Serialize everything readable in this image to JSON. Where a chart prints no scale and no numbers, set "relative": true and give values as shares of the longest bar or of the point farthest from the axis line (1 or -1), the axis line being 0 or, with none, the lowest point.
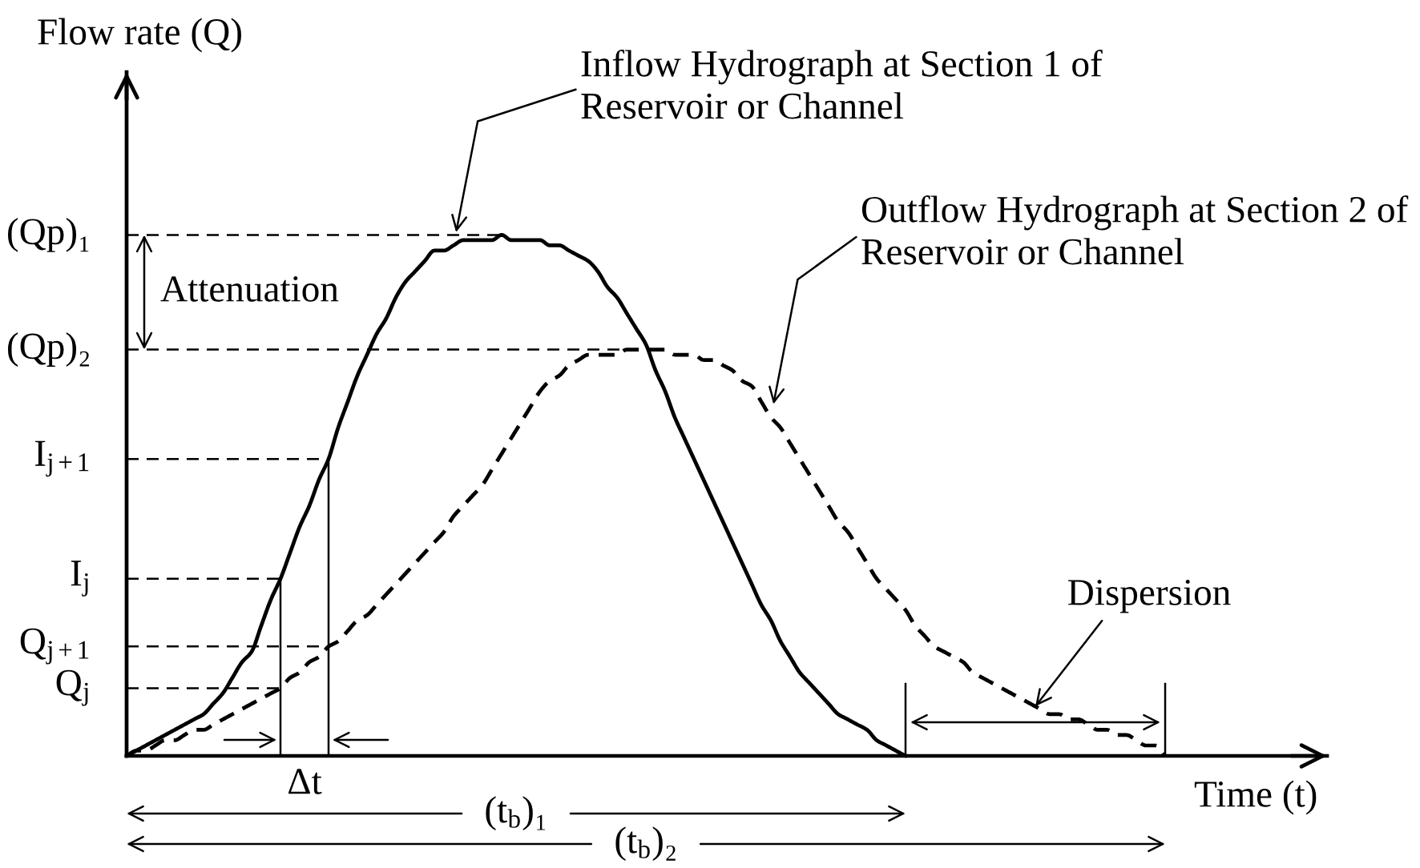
{
  "chart_data": {
    "type": "line",
    "relative": true,
    "xlabel": "Time (t)",
    "ylabel": "Flow rate (Q)",
    "categories": [
      null,
      null,
      null,
      null,
      null,
      null,
      null,
      null,
      null,
      null,
      null,
      null,
      null,
      null,
      null,
      null,
      null,
      null,
      null,
      null,
      null,
      null,
      null,
      null,
      null,
      null,
      null,
      null,
      null,
      null,
      null,
      null,
      null,
      null,
      null,
      null,
      null,
      null,
      null,
      null,
      null,
      null,
      null,
      null,
      null,
      null,
      null,
      null,
      null,
      null,
      null,
      null,
      null,
      null,
      null,
      null,
      null,
      null,
      null,
      null,
      null,
      null,
      null,
      null,
      null,
      null,
      null,
      null,
      null,
      null,
      null,
      null,
      null,
      null,
      null,
      null,
      null,
      null,
      null,
      null,
      null,
      null,
      null,
      null,
      null,
      null,
      null,
      null,
      null,
      null,
      null,
      null,
      null,
      null,
      null,
      null,
      null,
      null,
      null,
      null,
      null,
      null,
      null,
      null,
      null,
      null,
      null,
      null,
      null
    ],
    "series": [
      {
        "name": "Inflow Hydrograph at Section 1 of\nReservoir or Channel",
        "color": "#000000",
        "line_style": "solid",
        "values": [
          0,
          0.01,
          0.02,
          0.03,
          0.04,
          0.05,
          0.06,
          0.07,
          0.08,
          0.1,
          0.12,
          0.15,
          0.18,
          0.2,
          0.25,
          0.3,
          0.34,
          0.39,
          0.44,
          0.48,
          0.53,
          0.57,
          0.63,
          0.68,
          0.73,
          0.77,
          0.81,
          0.84,
          0.88,
          0.91,
          0.93,
          0.95,
          0.97,
          0.97,
          0.98,
          0.99,
          0.99,
          0.99,
          0.99,
          1,
          0.99,
          0.99,
          0.99,
          0.99,
          0.98,
          0.98,
          0.97,
          0.96,
          0.95,
          0.93,
          0.9,
          0.88,
          0.85,
          0.82,
          0.79,
          0.74,
          0.7,
          0.65,
          0.61,
          0.57,
          0.53,
          0.49,
          0.45,
          0.41,
          0.37,
          0.33,
          0.29,
          0.26,
          0.22,
          0.19,
          0.16,
          0.14,
          0.12,
          0.1,
          0.08,
          0.07,
          0.06,
          0.05,
          0.03,
          0.02,
          0.01,
          0,
          null,
          null,
          null,
          null,
          null,
          null,
          null,
          null,
          null,
          null,
          null,
          null,
          null,
          null,
          null,
          null,
          null,
          null,
          null,
          null,
          null,
          null,
          null,
          null,
          null,
          null,
          null
        ]
      },
      {
        "name": "Outflow Hydrograph at Section 2 of\nReservoir or Channel",
        "color": "#000000",
        "line_style": "dashed",
        "values": [
          0,
          0.01,
          0.01,
          0.02,
          0.03,
          0.03,
          0.04,
          0.05,
          0.05,
          0.06,
          0.07,
          0.08,
          0.09,
          0.1,
          0.11,
          0.12,
          0.13,
          0.15,
          0.16,
          0.18,
          0.19,
          0.21,
          0.22,
          0.24,
          0.26,
          0.27,
          0.29,
          0.31,
          0.33,
          0.35,
          0.37,
          0.39,
          0.41,
          0.43,
          0.46,
          0.48,
          0.5,
          0.52,
          0.55,
          0.58,
          0.61,
          0.64,
          0.67,
          0.7,
          0.72,
          0.73,
          0.75,
          0.76,
          0.77,
          0.77,
          0.77,
          0.77,
          0.78,
          0.78,
          0.78,
          0.78,
          0.78,
          0.77,
          0.77,
          0.77,
          0.76,
          0.76,
          0.75,
          0.74,
          0.72,
          0.71,
          0.68,
          0.65,
          0.63,
          0.6,
          0.57,
          0.54,
          0.51,
          0.48,
          0.45,
          0.43,
          0.4,
          0.37,
          0.34,
          0.32,
          0.3,
          0.28,
          0.25,
          0.23,
          0.21,
          0.2,
          0.19,
          0.18,
          0.16,
          0.15,
          0.14,
          0.13,
          0.12,
          0.11,
          0.1,
          0.09,
          0.08,
          0.08,
          0.07,
          0.07,
          0.06,
          0.05,
          0.05,
          0.04,
          0.04,
          0.03,
          0.02,
          0.02,
          0
        ]
      }
    ],
    "ref_lines": [
      {
        "axis": "y",
        "value": 1,
        "label": "(Qp)₁",
        "line_style": "dashed"
      },
      {
        "axis": "y",
        "value": 0.78,
        "label": "(Qp)₂",
        "line_style": "dashed"
      },
      {
        "axis": "y",
        "value": 0.57,
        "label": "I$_{j+1}$",
        "line_style": "dashed"
      },
      {
        "axis": "y",
        "value": 0.34,
        "label": "I$_{j}$",
        "line_style": "dashed"
      },
      {
        "axis": "y",
        "value": 0.21,
        "label": "Q$_{j+1}$",
        "line_style": "dashed"
      },
      {
        "axis": "y",
        "value": 0.13,
        "label": "Q$_{j}$",
        "line_style": "dashed"
      }
    ],
    "annotations": [
      "Attenuation",
      "Δt",
      "(t$_{b}$)₁",
      "(t$_{b}$)₂",
      "Dispersion"
    ]
  }
}
